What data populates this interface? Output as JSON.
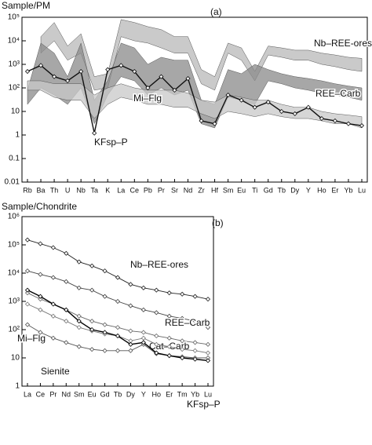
{
  "chart_data": [
    {
      "type": "line",
      "ylabel": "Sample/PM",
      "panel": "(a)",
      "log": true,
      "ylim": [
        0.01,
        100000
      ],
      "yticks": [
        0.01,
        0.1,
        1,
        10,
        {
          "value": 100,
          "label": "10²"
        },
        {
          "value": 1000,
          "label": "10³"
        },
        {
          "value": 10000,
          "label": "10⁴"
        },
        {
          "value": 100000,
          "label": "10⁵"
        }
      ],
      "categories": [
        "Rb",
        "Ba",
        "Th",
        "U",
        "Nb",
        "Ta",
        "K",
        "La",
        "Ce",
        "Pb",
        "Pr",
        "Sr",
        "Nd",
        "Zr",
        "Hf",
        "Sm",
        "Eu",
        "Ti",
        "Gd",
        "Tb",
        "Dy",
        "Y",
        "Ho",
        "Er",
        "Yb",
        "Lu"
      ],
      "series": [
        {
          "name": "Nb–REE-ores",
          "color": "#b8b8b8",
          "low": [
            null,
            3000,
            10000,
            1500,
            3000,
            80,
            100,
            15000,
            10000,
            8000,
            5000,
            3000,
            3000,
            150,
            80,
            3000,
            1500,
            200,
            2500,
            2000,
            1500,
            1500,
            1000,
            800,
            600,
            500
          ],
          "high": [
            null,
            15000,
            60000,
            6000,
            20000,
            300,
            400,
            80000,
            60000,
            40000,
            30000,
            15000,
            15000,
            600,
            300,
            8000,
            5000,
            500,
            6000,
            5000,
            4000,
            4000,
            3000,
            2500,
            2000,
            1800
          ]
        },
        {
          "name": "REE–Carb",
          "color": "#8a8a8a",
          "low": [
            20,
            100,
            50,
            20,
            100,
            3,
            50,
            300,
            200,
            50,
            100,
            50,
            80,
            3,
            2,
            40,
            30,
            20,
            200,
            150,
            100,
            80,
            60,
            50,
            40,
            30
          ],
          "high": [
            80,
            8000,
            3000,
            300,
            8000,
            30,
            200,
            8000,
            5000,
            1000,
            2000,
            1500,
            1500,
            30,
            20,
            600,
            400,
            1000,
            600,
            400,
            300,
            250,
            200,
            150,
            120,
            100
          ]
        },
        {
          "name": "Mi–Flg",
          "color": "#c8c8c8",
          "low": [
            80,
            80,
            40,
            30,
            30,
            5,
            20,
            40,
            30,
            20,
            20,
            15,
            15,
            8,
            5,
            10,
            8,
            6,
            8,
            6,
            5,
            5,
            4,
            3,
            3,
            2
          ],
          "high": [
            200,
            200,
            150,
            150,
            150,
            50,
            100,
            150,
            100,
            80,
            80,
            80,
            60,
            30,
            25,
            50,
            40,
            30,
            30,
            20,
            15,
            15,
            10,
            8,
            7,
            6
          ]
        },
        {
          "name": "KFsp–P",
          "color": "#111111",
          "values": [
            500,
            900,
            300,
            200,
            500,
            1.2,
            600,
            900,
            500,
            100,
            300,
            80,
            250,
            4,
            3,
            50,
            30,
            15,
            25,
            10,
            8,
            15,
            5,
            4,
            3,
            2.5
          ]
        }
      ]
    },
    {
      "type": "line",
      "ylabel": "Sample/Chondrite",
      "panel": "(b)",
      "log": true,
      "ylim": [
        1,
        1000000
      ],
      "yticks": [
        1,
        10,
        {
          "value": 100,
          "label": "10²"
        },
        {
          "value": 1000,
          "label": "10³"
        },
        {
          "value": 10000,
          "label": "10⁴"
        },
        {
          "value": 100000,
          "label": "10⁵"
        },
        {
          "value": 1000000,
          "label": "10⁶"
        }
      ],
      "categories": [
        "La",
        "Ce",
        "Pr",
        "Nd",
        "Sm",
        "Eu",
        "Gd",
        "Tb",
        "Dy",
        "Y",
        "Ho",
        "Er",
        "Tm",
        "Yb",
        "Lu"
      ],
      "series": [
        {
          "name": "Nb–REE-ores",
          "color": "#222222",
          "values": [
            150000,
            110000,
            80000,
            50000,
            25000,
            18000,
            12000,
            7000,
            4000,
            3000,
            2500,
            2000,
            1800,
            1500,
            1200
          ]
        },
        {
          "name": "REE–Carb",
          "color": "#444444",
          "values": [
            12000,
            9000,
            7000,
            5000,
            3000,
            2500,
            1500,
            1000,
            700,
            500,
            400,
            300,
            250,
            200,
            120
          ]
        },
        {
          "name": "Cat–Carb",
          "color": "#666666",
          "values": [
            2000,
            1200,
            800,
            500,
            300,
            200,
            150,
            120,
            90,
            80,
            60,
            50,
            40,
            35,
            30
          ]
        },
        {
          "name": "Mi–Flg",
          "color": "#777777",
          "values": [
            800,
            500,
            300,
            200,
            120,
            90,
            70,
            60,
            40,
            50,
            30,
            25,
            20,
            18,
            15
          ]
        },
        {
          "name": "Sienite",
          "color": "#555555",
          "values": [
            150,
            80,
            50,
            35,
            25,
            20,
            18,
            18,
            18,
            30,
            14,
            12,
            11,
            10,
            10
          ]
        },
        {
          "name": "KFsp–P",
          "color": "#000000",
          "values": [
            2500,
            1500,
            800,
            500,
            200,
            100,
            80,
            60,
            30,
            35,
            15,
            12,
            10,
            9,
            8
          ]
        }
      ]
    }
  ]
}
